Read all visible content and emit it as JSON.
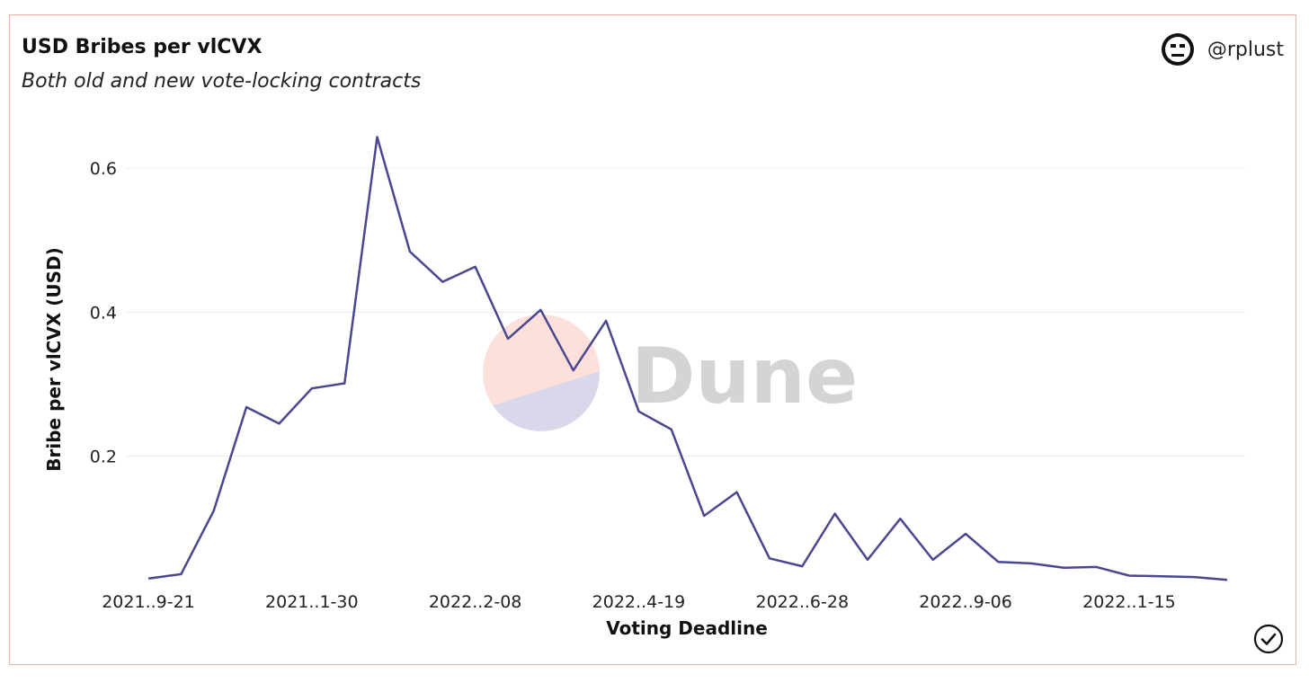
{
  "header": {
    "title": "USD Bribes per vlCVX",
    "subtitle": "Both old and new vote-locking contracts",
    "author": "@rplust"
  },
  "watermark": {
    "text": "Dune"
  },
  "icons": {
    "avatar": "neutral-face-icon",
    "check": "check-circle-icon"
  },
  "colors": {
    "line": "#4a4690",
    "border": "#f2b3a6",
    "grid": "#ececec",
    "watermark_top": "#fde0da",
    "watermark_bottom": "#d9d8ea"
  },
  "chart_data": {
    "type": "line",
    "title": "USD Bribes per vlCVX",
    "subtitle": "Both old and new vote-locking contracts",
    "xlabel": "Voting Deadline",
    "ylabel": "Bribe per vlCVX (USD)",
    "ylim": [
      0.02,
      0.65
    ],
    "yticks": [
      0.2,
      0.4,
      0.6
    ],
    "grid": true,
    "legend": "none",
    "xtick_labels": [
      {
        "index": 0,
        "label": "2021..9-21"
      },
      {
        "index": 5,
        "label": "2021..1-30"
      },
      {
        "index": 10,
        "label": "2022..2-08"
      },
      {
        "index": 15,
        "label": "2022..4-19"
      },
      {
        "index": 20,
        "label": "2022..6-28"
      },
      {
        "index": 25,
        "label": "2022..9-06"
      },
      {
        "index": 30,
        "label": "2022..1-15"
      }
    ],
    "series": [
      {
        "values": [
          0.03,
          0.036,
          0.124,
          0.268,
          0.245,
          0.294,
          0.301,
          0.643,
          0.484,
          0.442,
          0.463,
          0.363,
          0.403,
          0.319,
          0.388,
          0.262,
          0.237,
          0.117,
          0.15,
          0.058,
          0.047,
          0.12,
          0.056,
          0.113,
          0.056,
          0.092,
          0.053,
          0.051,
          0.045,
          0.046,
          0.034,
          0.033,
          0.032,
          0.028
        ]
      }
    ]
  }
}
